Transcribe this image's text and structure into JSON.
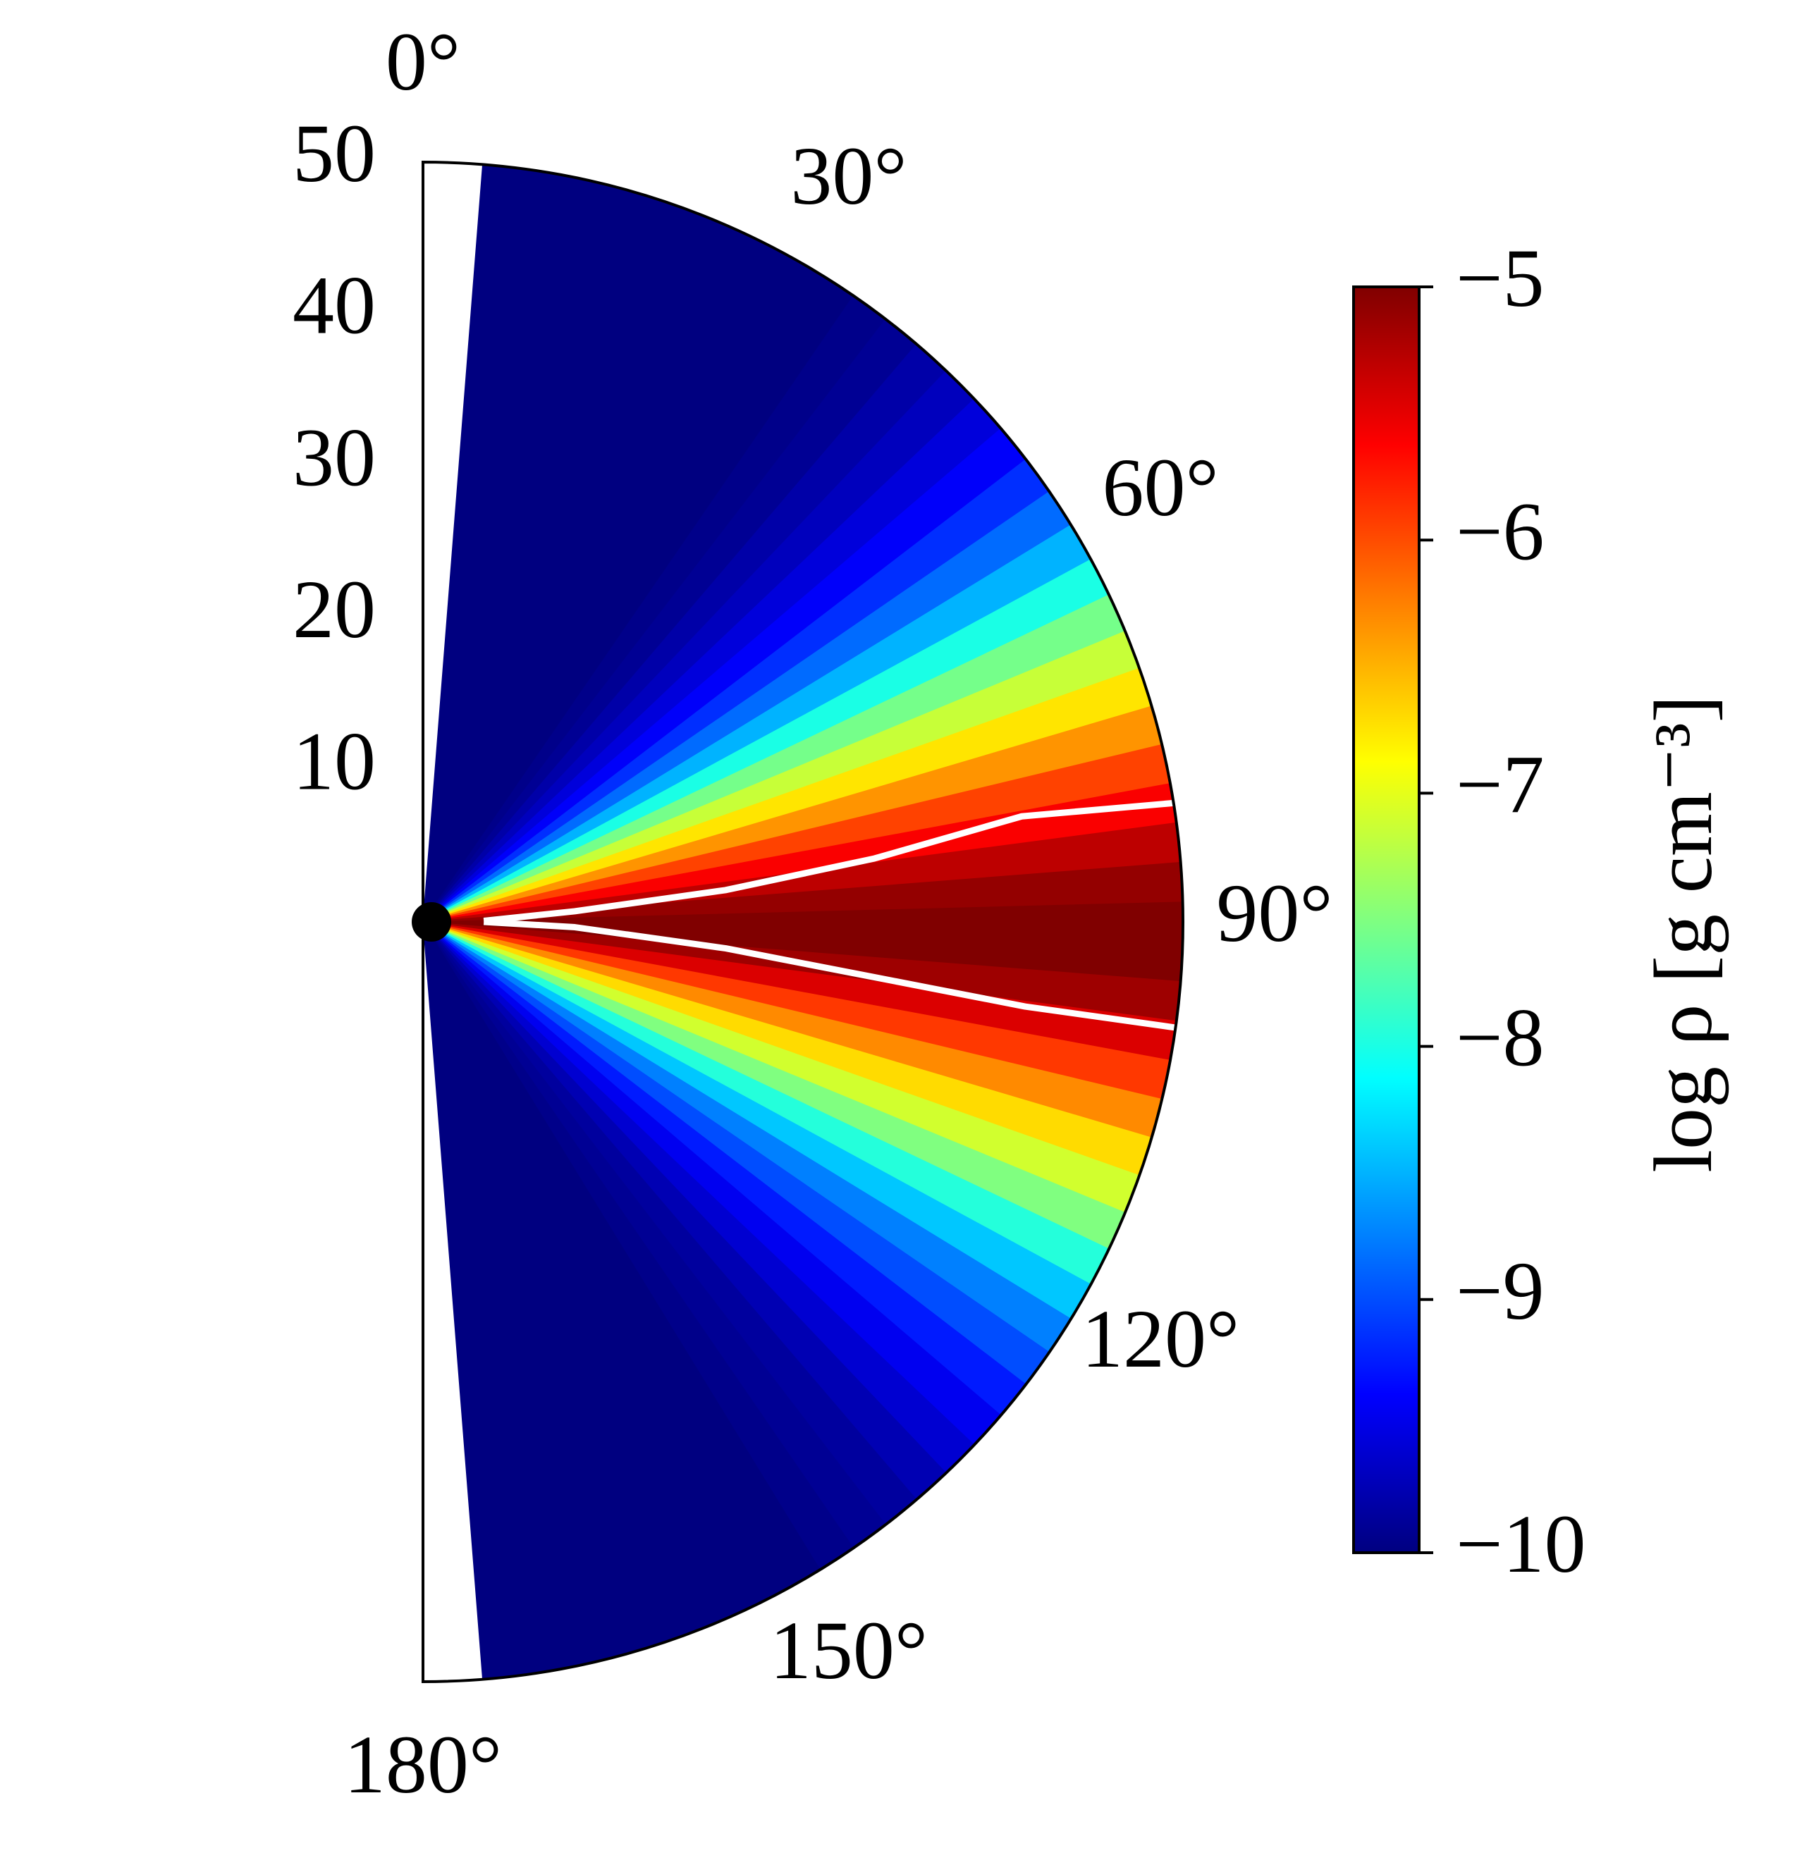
{
  "chart_data": {
    "type": "polar-density",
    "colormap": "jet",
    "colorbar_label": "log ρ [g cm⁻³]",
    "theta": [
      6,
      9,
      12,
      15,
      18,
      21,
      24,
      27,
      30,
      33,
      36,
      39,
      42,
      45,
      48,
      51,
      54,
      57,
      60,
      63,
      66,
      69,
      72,
      75,
      78,
      81,
      84,
      87,
      90,
      93,
      96,
      99,
      102,
      105,
      108,
      111,
      114,
      117,
      120,
      123,
      126,
      129,
      132,
      135,
      138,
      141,
      144,
      147,
      150,
      153,
      156,
      159,
      162,
      165,
      168,
      171,
      174
    ],
    "values": [
      -10,
      -10,
      -10,
      -10,
      -10,
      -10,
      -10,
      -10,
      -10,
      -10,
      -9.95,
      -9.9,
      -9.8,
      -9.7,
      -9.55,
      -9.4,
      -9.15,
      -8.85,
      -8.5,
      -8.0,
      -7.55,
      -7.15,
      -6.75,
      -6.35,
      -5.95,
      -5.6,
      -5.3,
      -5.1,
      -5.0,
      -5.0,
      -5.15,
      -5.45,
      -5.9,
      -6.3,
      -6.7,
      -7.1,
      -7.5,
      -7.95,
      -8.4,
      -8.75,
      -9.0,
      -9.25,
      -9.45,
      -9.6,
      -9.75,
      -9.85,
      -9.9,
      -9.95,
      -10,
      -10,
      -10,
      -10,
      -10,
      -10,
      -10,
      -10,
      -10
    ],
    "contours": [
      {
        "color": "#ffffff",
        "r": [
          4,
          10,
          20,
          30,
          40,
          50
        ],
        "theta": [
          89,
          86,
          84,
          82,
          80,
          81
        ]
      },
      {
        "color": "#ffffff",
        "r": [
          4,
          10,
          20,
          30,
          40,
          50
        ],
        "theta": [
          90,
          92,
          95,
          97,
          98,
          98
        ]
      }
    ],
    "rlim": [
      0,
      50
    ],
    "rticks": [
      10,
      20,
      30,
      40,
      50
    ],
    "thetaticks": [
      {
        "value": 0,
        "label": "0°"
      },
      {
        "value": 30,
        "label": "30°"
      },
      {
        "value": 60,
        "label": "60°"
      },
      {
        "value": 90,
        "label": "90°"
      },
      {
        "value": 120,
        "label": "120°"
      },
      {
        "value": 150,
        "label": "150°"
      },
      {
        "value": 180,
        "label": "180°"
      }
    ],
    "clim": [
      -10,
      -5
    ],
    "cticks": [
      {
        "value": -5,
        "label": "−5"
      },
      {
        "value": -6,
        "label": "−6"
      },
      {
        "value": -7,
        "label": "−7"
      },
      {
        "value": -8,
        "label": "−8"
      },
      {
        "value": -9,
        "label": "−9"
      },
      {
        "value": -10,
        "label": "−10"
      }
    ]
  }
}
